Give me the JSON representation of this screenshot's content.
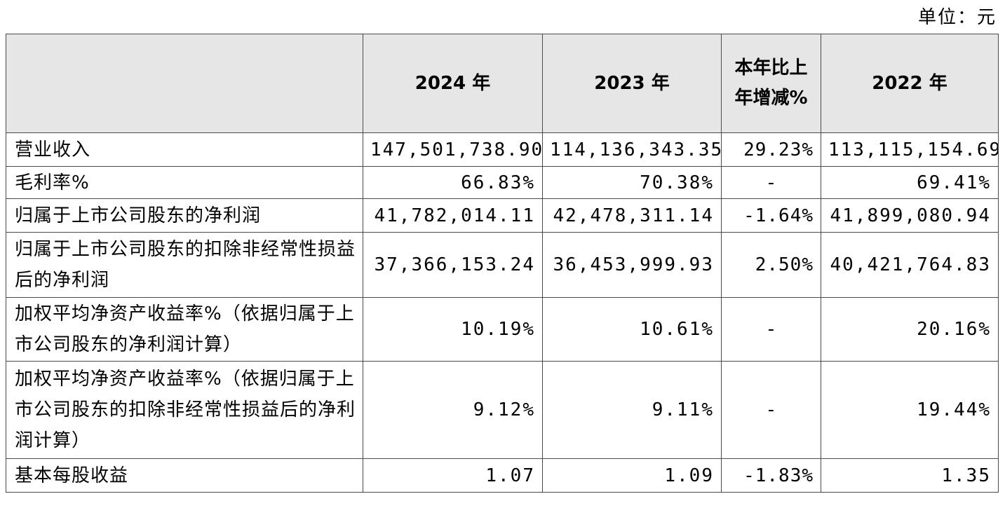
{
  "unit_label": "单位：元",
  "header": {
    "blank": "",
    "y2024": "2024 年",
    "y2023": "2023 年",
    "change": "本年比上年增减%",
    "y2022": "2022 年"
  },
  "rows": [
    {
      "label": "营业收入",
      "y2024": "147,501,738.90",
      "y2023": "114,136,343.35",
      "change": "29.23%",
      "y2022": "113,115,154.69"
    },
    {
      "label": "毛利率%",
      "y2024": "66.83%",
      "y2023": "70.38%",
      "change": "-",
      "y2022": "69.41%"
    },
    {
      "label": "归属于上市公司股东的净利润",
      "y2024": "41,782,014.11",
      "y2023": "42,478,311.14",
      "change": "-1.64%",
      "y2022": "41,899,080.94"
    },
    {
      "label": "归属于上市公司股东的扣除非经常性损益后的净利润",
      "y2024": "37,366,153.24",
      "y2023": "36,453,999.93",
      "change": "2.50%",
      "y2022": "40,421,764.83"
    },
    {
      "label": "加权平均净资产收益率%（依据归属于上市公司股东的净利润计算）",
      "y2024": "10.19%",
      "y2023": "10.61%",
      "change": "-",
      "y2022": "20.16%"
    },
    {
      "label": "加权平均净资产收益率%（依据归属于上市公司股东的扣除非经常性损益后的净利润计算）",
      "y2024": "9.12%",
      "y2023": "9.11%",
      "change": "-",
      "y2022": "19.44%"
    },
    {
      "label": "基本每股收益",
      "y2024": "1.07",
      "y2023": "1.09",
      "change": "-1.83%",
      "y2022": "1.35"
    }
  ]
}
